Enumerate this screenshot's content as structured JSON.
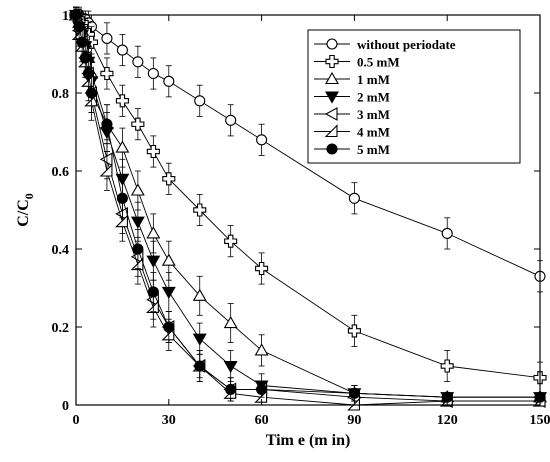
{
  "chart_data": {
    "type": "line",
    "xlabel": "Tim e (m in)",
    "ylabel_main": "C/C",
    "ylabel_sub": "0",
    "xlim": [
      0,
      150
    ],
    "ylim": [
      0,
      1
    ],
    "x_ticks": [
      "0",
      "30",
      "60",
      "90",
      "120",
      "150"
    ],
    "x_ticks_values": [
      0,
      30,
      60,
      90,
      120,
      150
    ],
    "y_ticks": [
      "0",
      "0.2",
      "0.4",
      "0.6",
      "0.8",
      "1"
    ],
    "y_ticks_values": [
      0,
      0.2,
      0.4,
      0.6,
      0.8,
      1
    ],
    "grid": false,
    "legend_position": "top-right",
    "series": [
      {
        "name": "without periodate",
        "marker": "circle-open",
        "x": [
          0,
          1,
          2,
          3,
          4,
          5,
          10,
          15,
          20,
          25,
          30,
          40,
          50,
          60,
          90,
          120,
          150
        ],
        "y": [
          1.0,
          1.0,
          0.99,
          0.99,
          0.98,
          0.97,
          0.94,
          0.91,
          0.88,
          0.85,
          0.83,
          0.78,
          0.73,
          0.68,
          0.53,
          0.44,
          0.33
        ],
        "err": [
          0.02,
          0.02,
          0.02,
          0.02,
          0.03,
          0.03,
          0.04,
          0.04,
          0.04,
          0.04,
          0.04,
          0.04,
          0.04,
          0.04,
          0.04,
          0.04,
          0.04
        ]
      },
      {
        "name": "0.5 mM",
        "marker": "plus-open",
        "x": [
          0,
          1,
          2,
          3,
          4,
          5,
          10,
          15,
          20,
          25,
          30,
          40,
          50,
          60,
          90,
          120,
          150
        ],
        "y": [
          1.0,
          0.99,
          0.98,
          0.96,
          0.95,
          0.93,
          0.85,
          0.78,
          0.72,
          0.65,
          0.58,
          0.5,
          0.42,
          0.35,
          0.19,
          0.1,
          0.07
        ],
        "err": [
          0.02,
          0.02,
          0.03,
          0.03,
          0.03,
          0.04,
          0.04,
          0.04,
          0.04,
          0.04,
          0.04,
          0.04,
          0.04,
          0.04,
          0.04,
          0.04,
          0.04
        ]
      },
      {
        "name": "1 mM",
        "marker": "triangle-up-open",
        "x": [
          0,
          1,
          2,
          3,
          4,
          5,
          10,
          15,
          20,
          25,
          30,
          40,
          50,
          60,
          90,
          120,
          150
        ],
        "y": [
          1.0,
          0.98,
          0.96,
          0.93,
          0.89,
          0.85,
          0.72,
          0.66,
          0.55,
          0.44,
          0.37,
          0.28,
          0.21,
          0.14,
          0.03,
          0.02,
          0.02
        ],
        "err": [
          0.02,
          0.03,
          0.03,
          0.04,
          0.04,
          0.05,
          0.05,
          0.05,
          0.05,
          0.05,
          0.05,
          0.05,
          0.05,
          0.04,
          0.02,
          0.01,
          0.01
        ]
      },
      {
        "name": "2 mM",
        "marker": "triangle-down-filled",
        "x": [
          0,
          1,
          2,
          3,
          4,
          5,
          10,
          15,
          20,
          25,
          30,
          40,
          50,
          60,
          90,
          120,
          150
        ],
        "y": [
          1.0,
          0.97,
          0.95,
          0.92,
          0.88,
          0.83,
          0.7,
          0.58,
          0.47,
          0.37,
          0.29,
          0.17,
          0.1,
          0.05,
          0.03,
          0.02,
          0.02
        ],
        "err": [
          0.02,
          0.03,
          0.03,
          0.04,
          0.04,
          0.05,
          0.05,
          0.05,
          0.05,
          0.05,
          0.05,
          0.04,
          0.04,
          0.03,
          0.02,
          0.01,
          0.01
        ]
      },
      {
        "name": "3 mM",
        "marker": "triangle-left-open",
        "x": [
          0,
          1,
          2,
          3,
          4,
          5,
          10,
          15,
          20,
          25,
          30,
          40,
          50,
          60,
          90,
          120,
          150
        ],
        "y": [
          1.0,
          0.96,
          0.93,
          0.89,
          0.85,
          0.8,
          0.63,
          0.49,
          0.38,
          0.27,
          0.2,
          0.1,
          0.04,
          0.04,
          0.02,
          0.01,
          0.01
        ],
        "err": [
          0.02,
          0.03,
          0.04,
          0.04,
          0.05,
          0.05,
          0.05,
          0.05,
          0.05,
          0.05,
          0.04,
          0.04,
          0.03,
          0.02,
          0.01,
          0.01,
          0.01
        ]
      },
      {
        "name": "4 mM",
        "marker": "right-triangle-open",
        "x": [
          0,
          1,
          2,
          3,
          4,
          5,
          10,
          15,
          20,
          25,
          30,
          40,
          50,
          60,
          90,
          120,
          150
        ],
        "y": [
          1.0,
          0.95,
          0.92,
          0.88,
          0.83,
          0.78,
          0.6,
          0.47,
          0.36,
          0.25,
          0.18,
          0.1,
          0.03,
          0.02,
          0.0,
          0.01,
          0.01
        ],
        "err": [
          0.02,
          0.03,
          0.04,
          0.04,
          0.05,
          0.05,
          0.05,
          0.05,
          0.05,
          0.05,
          0.04,
          0.03,
          0.02,
          0.02,
          0.01,
          0.01,
          0.01
        ]
      },
      {
        "name": "5 mM",
        "marker": "circle-filled",
        "x": [
          0,
          1,
          2,
          3,
          4,
          5,
          10,
          15,
          20,
          25,
          30,
          40,
          50,
          60,
          90,
          120,
          150
        ],
        "y": [
          1.0,
          0.97,
          0.93,
          0.89,
          0.85,
          0.8,
          0.72,
          0.53,
          0.4,
          0.29,
          0.2,
          0.1,
          0.04,
          0.04,
          0.03,
          0.02,
          0.02
        ],
        "err": [
          0.02,
          0.03,
          0.04,
          0.04,
          0.05,
          0.05,
          0.05,
          0.05,
          0.05,
          0.05,
          0.04,
          0.04,
          0.03,
          0.02,
          0.02,
          0.01,
          0.01
        ]
      }
    ]
  }
}
